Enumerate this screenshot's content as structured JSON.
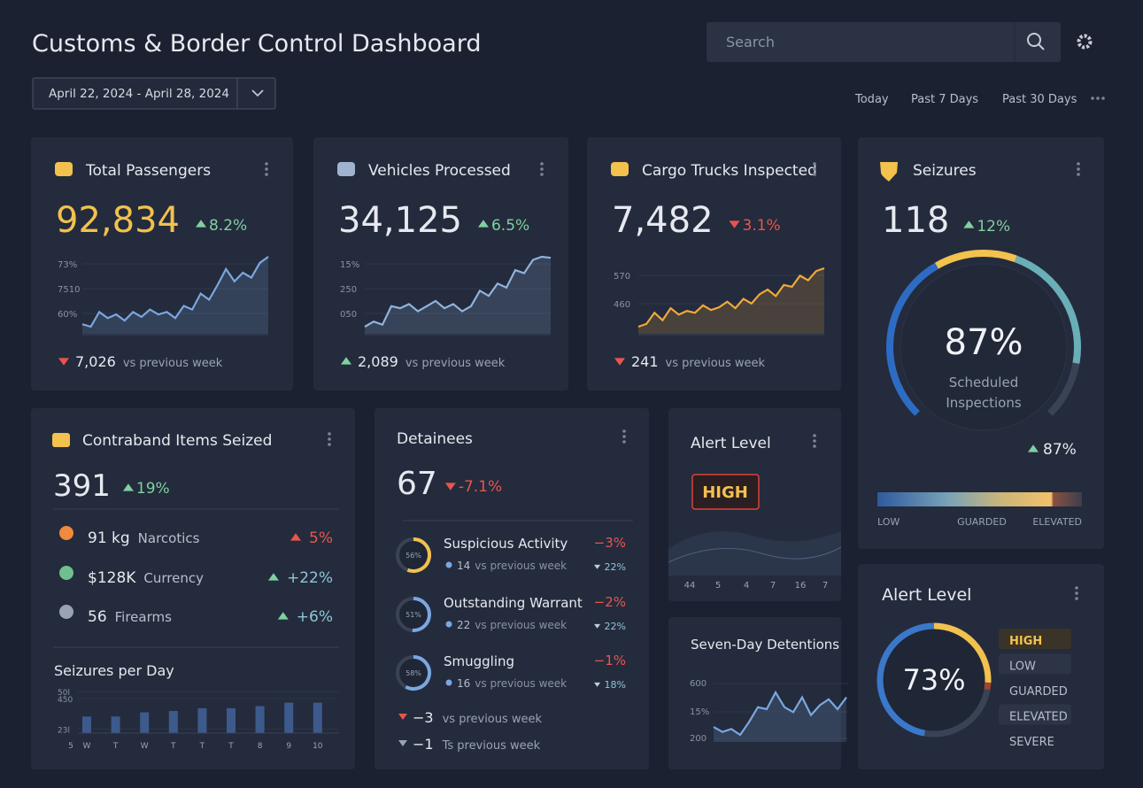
{
  "header": {
    "title": "Customs & Border Control Dashboard",
    "search_placeholder": "Search",
    "date_range": "April 22, 2024 - April 28, 2024",
    "ranges": [
      "Today",
      "Past 7 Days",
      "Past 30 Days"
    ]
  },
  "metric_cards": [
    {
      "title": "Total Passengers",
      "value": "92,834",
      "value_color": "#f2c14e",
      "change": "8.2%",
      "trend": "up",
      "axis_labels": [
        "73%",
        "7510",
        "60%"
      ],
      "series": [
        30,
        28,
        40,
        35,
        38,
        33,
        40,
        36,
        42,
        38,
        40,
        35,
        45,
        42,
        55,
        50,
        62,
        75,
        65,
        72,
        68,
        80,
        85
      ],
      "line_color": "#7aa7e0",
      "footer_value": "7,026",
      "footer_trend": "down",
      "footer_text": "vs previous week"
    },
    {
      "title": "Vehicles Processed",
      "value": "34,125",
      "value_color": "#e6e9ef",
      "change": "6.5%",
      "trend": "up",
      "axis_labels": [
        "15%",
        "250",
        "050"
      ],
      "series": [
        20,
        25,
        22,
        40,
        38,
        42,
        35,
        40,
        45,
        38,
        42,
        35,
        40,
        55,
        50,
        62,
        58,
        75,
        72,
        85,
        88,
        87
      ],
      "line_color": "#8fb4dd",
      "footer_value": "2,089",
      "footer_trend": "up",
      "footer_text": "vs previous week"
    },
    {
      "title": "Cargo Trucks Inspected",
      "value": "7,482",
      "value_color": "#e6e9ef",
      "change": "3.1%",
      "trend": "down",
      "axis_labels": [
        "570",
        "460"
      ],
      "series": [
        25,
        28,
        40,
        32,
        45,
        38,
        42,
        40,
        48,
        43,
        46,
        52,
        45,
        55,
        50,
        60,
        65,
        58,
        70,
        68,
        80,
        75,
        85,
        88
      ],
      "line_color": "#f0a93b",
      "footer_value": "241",
      "footer_trend": "down",
      "footer_text": "vs previous week"
    }
  ],
  "seizures": {
    "title": "Seizures",
    "value": "118",
    "change": "12%",
    "trend": "up",
    "gauge": {
      "value": 87,
      "label": "87%"
    },
    "caption_lines": [
      "Scheduled",
      "Inspections"
    ],
    "gauge_change": "87%",
    "gauge_trend": "up",
    "scale_labels": [
      "LOW",
      "GUARDED",
      "ELEVATED"
    ]
  },
  "contraband": {
    "title": "Contraband Items Seized",
    "value": "391",
    "change": "19%",
    "trend": "up",
    "items": [
      {
        "amount": "91 kg",
        "name": "Narcotics",
        "change": "5%",
        "trend": "alert"
      },
      {
        "amount": "$128K",
        "name": "Currency",
        "change": "+22%",
        "trend": "up"
      },
      {
        "amount": "56",
        "name": "Firearms",
        "change": "+6%",
        "trend": "up"
      }
    ],
    "chart": {
      "title": "Seizures per Day",
      "ylim": [
        200,
        520
      ],
      "yticks": [
        {
          "value": 500,
          "label": "50l"
        },
        {
          "value": 450,
          "label": "450"
        },
        {
          "value": 230,
          "label": "23l"
        }
      ],
      "x_start_label": "5",
      "categories": [
        "W",
        "T",
        "W",
        "T",
        "T",
        "T",
        "8",
        "9",
        "10"
      ],
      "values": [
        320,
        320,
        350,
        360,
        380,
        380,
        395,
        420,
        420
      ],
      "color": "#3d5a8c"
    }
  },
  "detainees": {
    "title": "Detainees",
    "value": "67",
    "change": "-7.1%",
    "trend": "down",
    "items": [
      {
        "ring": {
          "value": 56,
          "label": "56%"
        },
        "name": "Suspicious Activity",
        "sub_value": "14",
        "sub_text": "vs previous week",
        "change": "−3%",
        "sub_change": "22%",
        "ring_color": "#f2c14e"
      },
      {
        "ring": {
          "value": 51,
          "label": "51%"
        },
        "name": "Outstanding Warrant",
        "sub_value": "22",
        "sub_text": "vs previous week",
        "change": "−2%",
        "sub_change": "22%",
        "ring_color": "#7aa7e0"
      },
      {
        "ring": {
          "value": 58,
          "label": "58%"
        },
        "name": "Smuggling",
        "sub_value": "16",
        "sub_text": "vs previous week",
        "change": "−1%",
        "sub_change": "18%",
        "ring_color": "#7aa7e0"
      }
    ],
    "footer": [
      {
        "value": "−3",
        "text": "vs previous week",
        "color": "#e8554e"
      },
      {
        "value": "−1",
        "text": "Ts previous week",
        "color": "#9aa3b3"
      }
    ]
  },
  "alert_small": {
    "title": "Alert Level",
    "badge": "HIGH",
    "axis_labels": [
      "44",
      "5",
      "4",
      "7",
      "16",
      "7"
    ]
  },
  "detentions": {
    "title": "Seven-Day Detentions",
    "axis_labels": [
      "600",
      "15%",
      "200"
    ],
    "series": [
      40,
      35,
      38,
      32,
      45,
      60,
      58,
      75,
      60,
      55,
      70,
      52,
      62,
      68,
      58,
      70
    ],
    "line_color": "#7aa7e0"
  },
  "alert_level": {
    "title": "Alert Level",
    "ring": {
      "value": 73,
      "label": "73%"
    },
    "levels": [
      "HIGH",
      "LOW",
      "GUARDED",
      "ELEVATED",
      "SEVERE"
    ],
    "active": 0
  }
}
